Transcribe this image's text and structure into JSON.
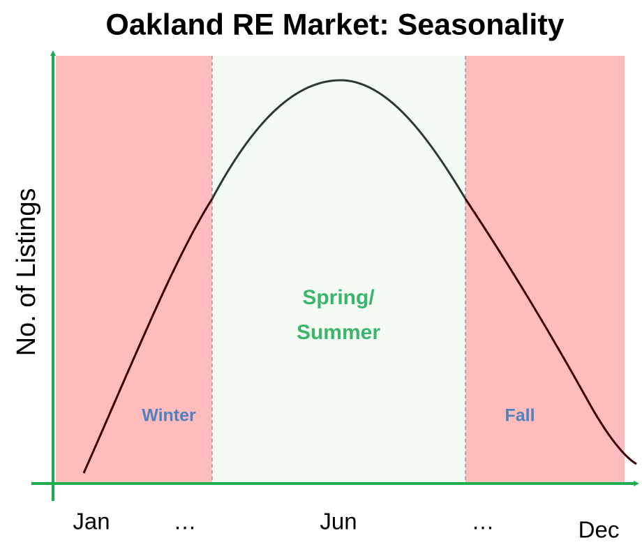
{
  "title": "Oakland RE Market: Seasonality",
  "y_axis_label": "No. of Listings",
  "x_labels": [
    "Jan",
    "…",
    "Jun",
    "…",
    "Dec"
  ],
  "regions": [
    {
      "lines": [
        "Winter"
      ]
    },
    {
      "lines": [
        "Spring/",
        "Summer"
      ]
    },
    {
      "lines": [
        "Fall"
      ]
    }
  ]
}
